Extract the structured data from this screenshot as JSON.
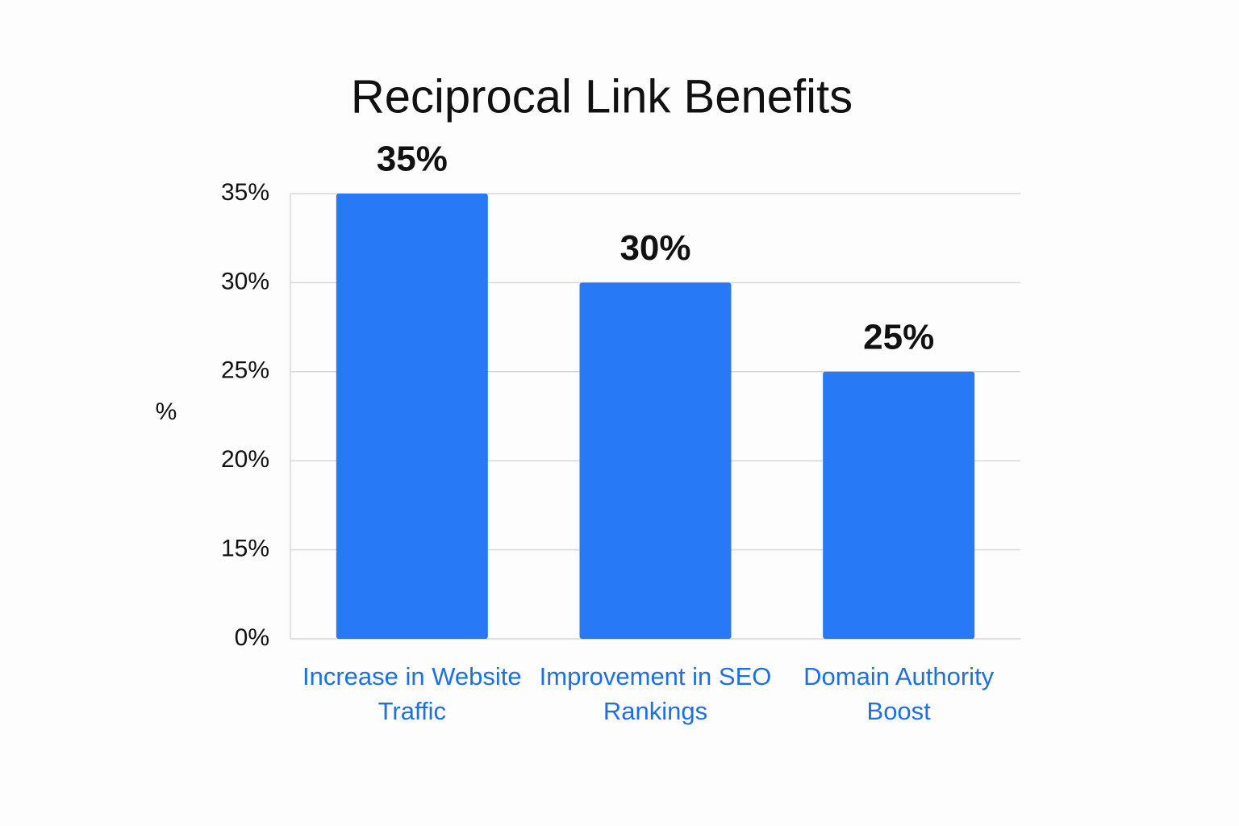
{
  "chart_data": {
    "type": "bar",
    "title": "Reciprocal Link Benefits",
    "y_label": "%",
    "categories": [
      "Increase in Website Traffic",
      "Improvement in SEO Rankings",
      "Domain Authority Boost"
    ],
    "values": [
      35,
      30,
      25
    ],
    "value_labels": [
      "35%",
      "30%",
      "25%"
    ],
    "color": "#2879f5",
    "ylim": [
      0,
      35
    ],
    "yticks": [
      {
        "value": 0,
        "label": "0%"
      },
      {
        "value": 15,
        "label": "15%"
      },
      {
        "value": 20,
        "label": "20%"
      },
      {
        "value": 25,
        "label": "25%"
      },
      {
        "value": 30,
        "label": "30%"
      },
      {
        "value": 35,
        "label": "35%"
      }
    ],
    "grid": true
  }
}
